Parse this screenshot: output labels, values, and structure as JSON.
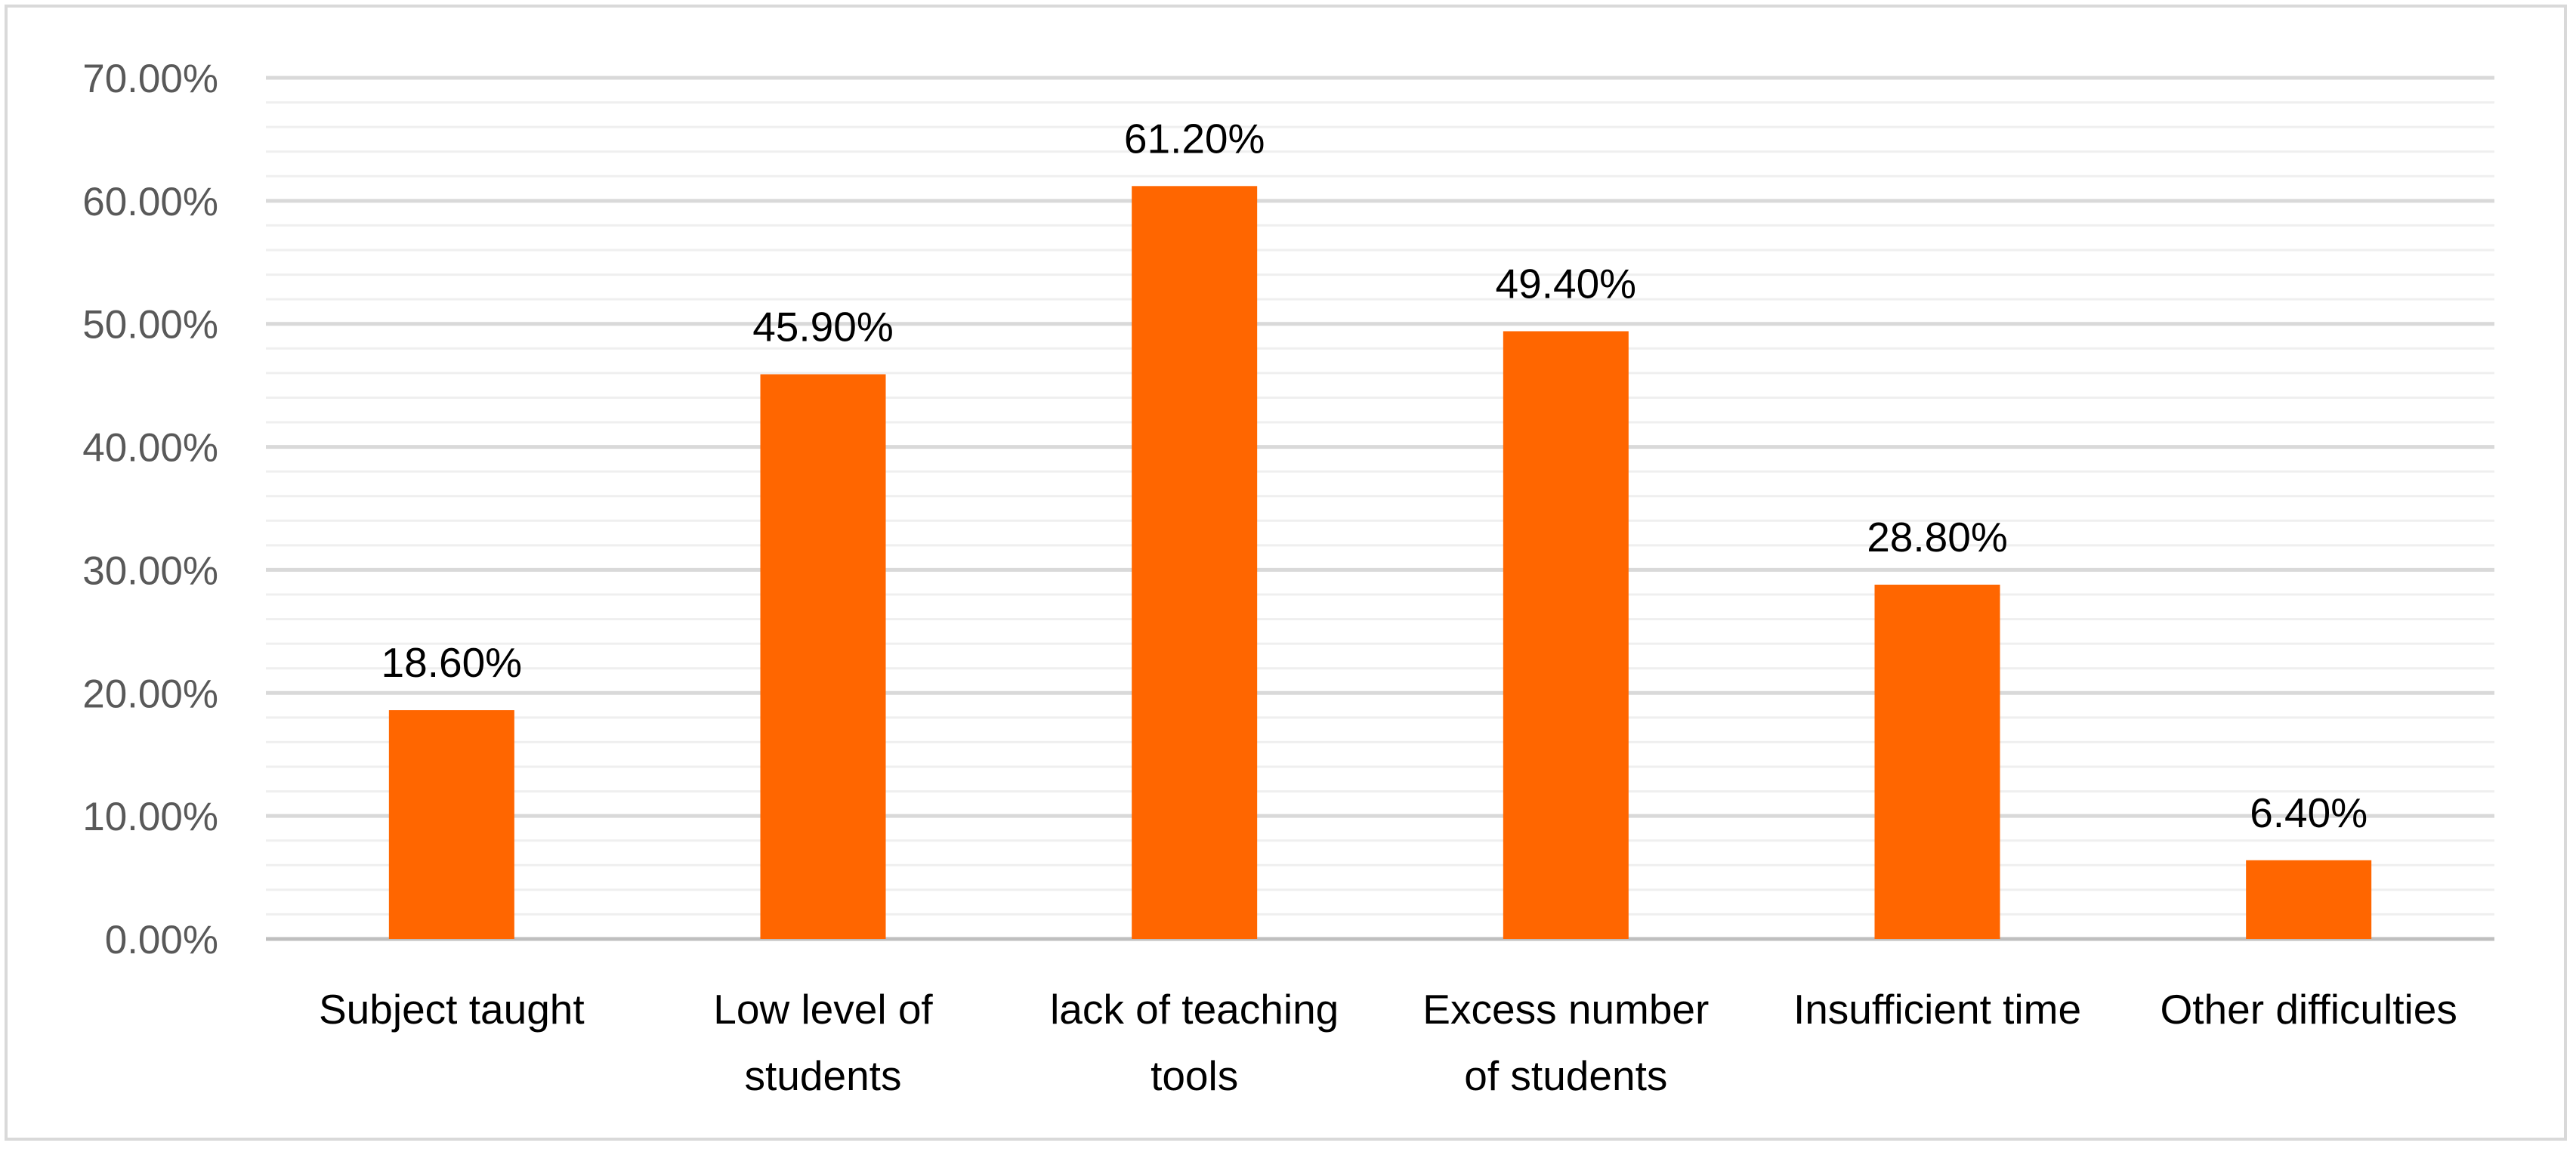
{
  "chart_data": {
    "type": "bar",
    "categories": [
      [
        "Subject taught"
      ],
      [
        "Low level of",
        "students"
      ],
      [
        "lack of teaching",
        "tools"
      ],
      [
        "Excess number",
        "of students"
      ],
      [
        "Insufficient time"
      ],
      [
        "Other difficulties"
      ]
    ],
    "values": [
      18.6,
      45.9,
      61.2,
      49.4,
      28.8,
      6.4
    ],
    "data_labels": [
      "18.60%",
      "45.90%",
      "61.20%",
      "49.40%",
      "28.80%",
      "6.40%"
    ],
    "y_ticks": [
      "0.00%",
      "10.00%",
      "20.00%",
      "30.00%",
      "40.00%",
      "50.00%",
      "60.00%",
      "70.00%"
    ],
    "ylim": [
      0,
      70
    ],
    "title": "",
    "xlabel": "",
    "ylabel": "",
    "grid": true,
    "legend": "none",
    "colors": {
      "bar": "#ff6600",
      "major_grid": "#d9d9d9",
      "minor_grid": "#efefef",
      "axis": "#bfbfbf"
    }
  }
}
